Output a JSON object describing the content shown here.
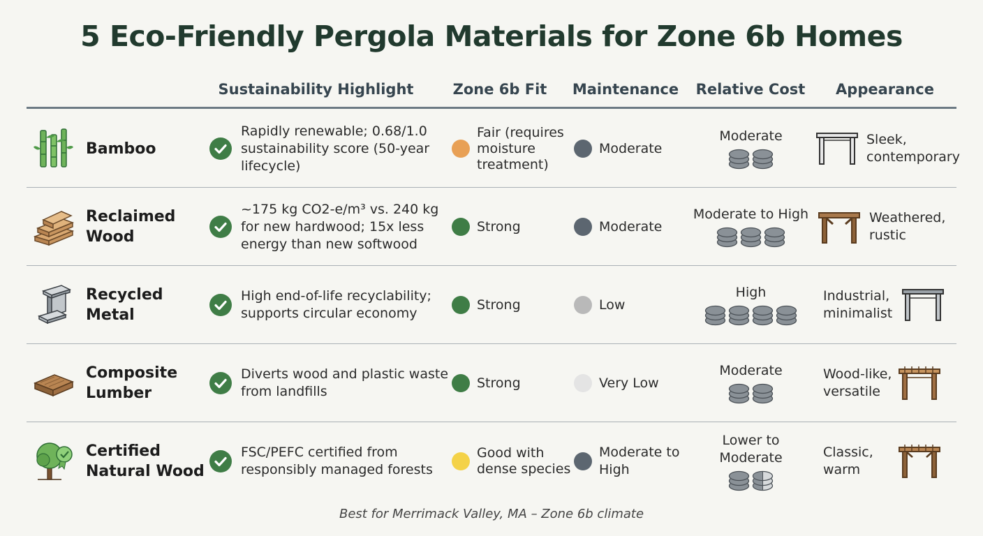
{
  "title": "5 Eco-Friendly Pergola Materials for Zone 6b Homes",
  "headers": {
    "sustainability": "Sustainability Highlight",
    "fit": "Zone 6b Fit",
    "maintenance": "Maintenance",
    "cost": "Relative Cost",
    "appearance": "Appearance"
  },
  "colors": {
    "fit_strong": "#3f7d46",
    "fit_fair": "#e8a055",
    "fit_good": "#f4d248",
    "maint_moderate": "#5c6670",
    "maint_low": "#b9b9b9",
    "maint_very_low": "#e4e4e4"
  },
  "rows": [
    {
      "material": "Bamboo",
      "icon": "bamboo-icon",
      "highlight": "Rapidly renewable; 0.68/1.0 sustainability score (50-year lifecycle)",
      "fit": "Fair (requires moisture treatment)",
      "fit_color": "#e8a055",
      "maintenance": "Moderate",
      "maint_color": "#5c6670",
      "cost": "Moderate",
      "cost_level": 2,
      "appearance": "Sleek, contemporary",
      "appearance_icon": "modern-pergola-icon"
    },
    {
      "material": "Reclaimed Wood",
      "icon": "wood-planks-icon",
      "highlight": "~175 kg CO2-e/m³ vs. 240 kg for new hardwood; 15x less energy than new softwood",
      "fit": "Strong",
      "fit_color": "#3f7d46",
      "maintenance": "Moderate",
      "maint_color": "#5c6670",
      "cost": "Moderate to High",
      "cost_level": 3,
      "appearance": "Weathered, rustic",
      "appearance_icon": "rustic-pergola-icon"
    },
    {
      "material": "Recycled Metal",
      "icon": "steel-beam-icon",
      "highlight": "High end-of-life recyclability; supports circular economy",
      "fit": "Strong",
      "fit_color": "#3f7d46",
      "maintenance": "Low",
      "maint_color": "#b9b9b9",
      "cost": "High",
      "cost_level": 4,
      "appearance": "Industrial, minimalist",
      "appearance_icon": "metal-pergola-icon"
    },
    {
      "material": "Composite Lumber",
      "icon": "composite-board-icon",
      "highlight": "Diverts wood and plastic waste from landfills",
      "fit": "Strong",
      "fit_color": "#3f7d46",
      "maintenance": "Very Low",
      "maint_color": "#e4e4e4",
      "cost": "Moderate",
      "cost_level": 2,
      "appearance": "Wood-like, versatile",
      "appearance_icon": "wood-pergola-icon"
    },
    {
      "material": "Certified Natural Wood",
      "icon": "certified-tree-icon",
      "highlight": "FSC/PEFC certified from responsibly managed forests",
      "fit": "Good with dense species",
      "fit_color": "#f4d248",
      "maintenance": "Moderate to High",
      "maint_color": "#5c6670",
      "cost": "Lower to Moderate",
      "cost_level": 1.5,
      "appearance": "Classic, warm",
      "appearance_icon": "classic-pergola-icon"
    }
  ],
  "footer": "Best for Merrimack Valley, MA – Zone 6b climate"
}
